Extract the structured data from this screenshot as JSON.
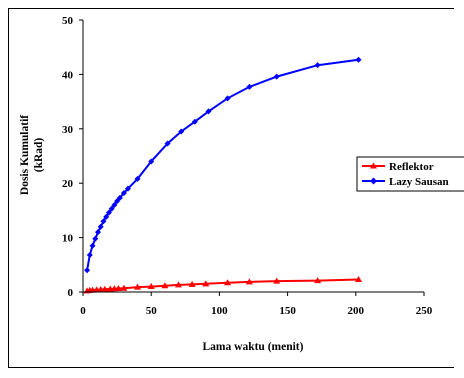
{
  "chart_data": {
    "type": "line",
    "xlabel": "Lama waktu (menit)",
    "ylabel_lines": [
      "Dosis Kumulatif",
      "(kRad)"
    ],
    "xlim": [
      0,
      250
    ],
    "ylim": [
      0,
      50
    ],
    "x_ticks": [
      0,
      50,
      100,
      150,
      200,
      250
    ],
    "y_ticks": [
      0,
      10,
      20,
      30,
      40,
      50
    ],
    "grid": false,
    "legend_position": "right",
    "series": [
      {
        "name": "Reflektor",
        "color": "#ff0000",
        "marker": "triangle",
        "x": [
          3,
          5,
          7,
          10,
          13,
          16,
          20,
          23,
          26,
          30,
          40,
          50,
          60,
          70,
          80,
          90,
          106,
          122,
          142,
          172,
          202
        ],
        "y": [
          0.2,
          0.3,
          0.35,
          0.4,
          0.45,
          0.5,
          0.55,
          0.6,
          0.65,
          0.7,
          0.9,
          1.0,
          1.15,
          1.3,
          1.4,
          1.5,
          1.7,
          1.85,
          2.0,
          2.1,
          2.3
        ]
      },
      {
        "name": "Lazy Sausan",
        "color": "#0000ff",
        "marker": "diamond",
        "x": [
          3,
          5,
          7,
          9,
          11,
          13,
          15,
          17,
          19,
          21,
          23,
          25,
          27,
          30,
          33,
          40,
          50,
          62,
          72,
          82,
          92,
          106,
          122,
          142,
          172,
          202
        ],
        "y": [
          4,
          6.8,
          8.5,
          9.8,
          11.0,
          12.0,
          13.0,
          13.8,
          14.6,
          15.3,
          16.0,
          16.7,
          17.3,
          18.2,
          19.0,
          20.8,
          24.0,
          27.3,
          29.5,
          31.3,
          33.2,
          35.6,
          37.7,
          39.6,
          41.7,
          42.7
        ]
      }
    ]
  }
}
